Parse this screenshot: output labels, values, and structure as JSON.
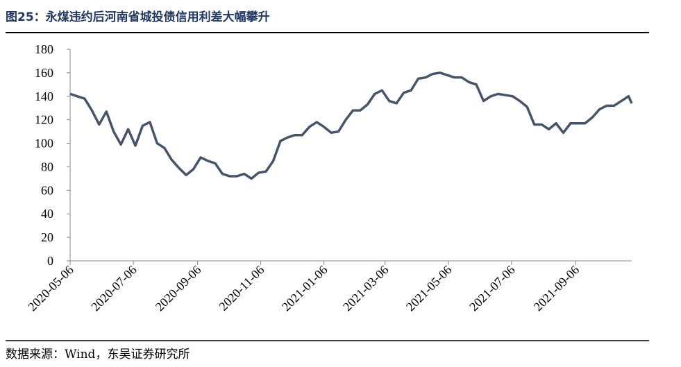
{
  "title": "图25：永煤违约后河南省城投债信用利差大幅攀升",
  "source": "数据来源：Wind，东吴证券研究所",
  "chart_data": {
    "type": "line",
    "x": [
      "2020-05-06",
      "2020-05-13",
      "2020-05-20",
      "2020-05-27",
      "2020-06-03",
      "2020-06-10",
      "2020-06-17",
      "2020-06-24",
      "2020-07-01",
      "2020-07-08",
      "2020-07-15",
      "2020-07-22",
      "2020-07-29",
      "2020-08-05",
      "2020-08-12",
      "2020-08-19",
      "2020-08-26",
      "2020-09-02",
      "2020-09-09",
      "2020-09-16",
      "2020-09-23",
      "2020-09-30",
      "2020-10-07",
      "2020-10-14",
      "2020-10-21",
      "2020-10-28",
      "2020-11-04",
      "2020-11-11",
      "2020-11-18",
      "2020-11-25",
      "2020-12-02",
      "2020-12-09",
      "2020-12-16",
      "2020-12-23",
      "2020-12-30",
      "2021-01-06",
      "2021-01-13",
      "2021-01-20",
      "2021-01-27",
      "2021-02-03",
      "2021-02-10",
      "2021-02-17",
      "2021-02-24",
      "2021-03-03",
      "2021-03-10",
      "2021-03-17",
      "2021-03-24",
      "2021-03-31",
      "2021-04-07",
      "2021-04-14",
      "2021-04-21",
      "2021-04-28",
      "2021-05-05",
      "2021-05-12",
      "2021-05-19",
      "2021-05-26",
      "2021-06-02",
      "2021-06-09",
      "2021-06-16",
      "2021-06-23",
      "2021-06-30",
      "2021-07-07",
      "2021-07-14",
      "2021-07-21",
      "2021-07-28",
      "2021-08-04",
      "2021-08-11",
      "2021-08-18",
      "2021-08-25",
      "2021-09-01",
      "2021-09-08",
      "2021-09-15",
      "2021-09-22",
      "2021-09-29",
      "2021-10-06",
      "2021-10-13",
      "2021-10-20",
      "2021-10-27",
      "2021-10-30"
    ],
    "series": [
      {
        "color": "#44546a",
        "values": [
          142,
          140,
          138,
          128,
          116,
          127,
          110,
          99,
          112,
          98,
          115,
          118,
          100,
          96,
          86,
          79,
          73,
          78,
          88,
          85,
          83,
          74,
          72,
          72,
          74,
          70,
          75,
          76,
          85,
          102,
          105,
          107,
          107,
          114,
          118,
          114,
          109,
          110,
          120,
          128,
          128,
          133,
          142,
          145,
          136,
          134,
          143,
          145,
          155,
          156,
          159,
          160,
          158,
          156,
          156,
          152,
          150,
          136,
          140,
          142,
          141,
          140,
          136,
          131,
          116,
          116,
          112,
          117,
          109,
          117,
          117,
          117,
          122,
          129,
          132,
          132,
          136,
          140,
          134
        ]
      }
    ],
    "xlim": [
      "2020-05-06",
      "2021-10-30"
    ],
    "xticks": [
      "2020-05-06",
      "2020-07-06",
      "2020-09-06",
      "2020-11-06",
      "2021-01-06",
      "2021-03-06",
      "2021-05-06",
      "2021-07-06",
      "2021-09-06"
    ],
    "ylim": [
      0,
      180
    ],
    "yticks": [
      0,
      20,
      40,
      60,
      80,
      100,
      120,
      140,
      160,
      180
    ]
  }
}
